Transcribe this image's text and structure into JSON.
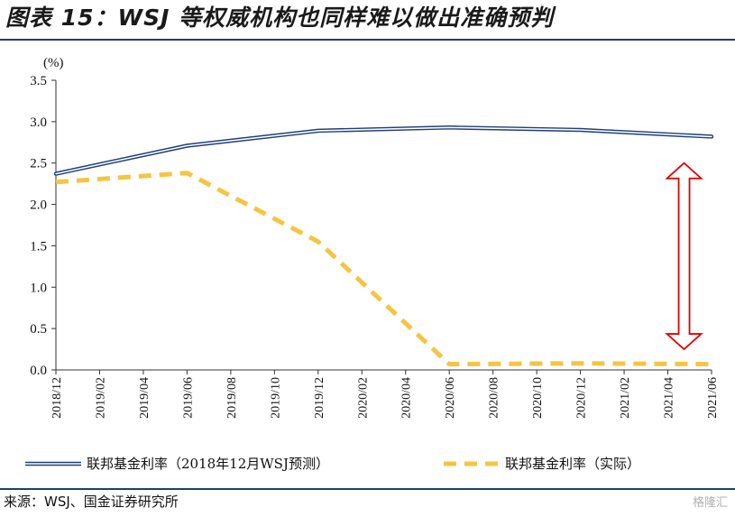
{
  "title": "图表 15：WSJ 等权威机构也同样难以做出准确预判",
  "source": "来源：WSJ、国金证券研究所",
  "watermark": "格隆汇",
  "chart_data": {
    "type": "line",
    "unit_label": "(%)",
    "x": [
      "2018/12",
      "2019/02",
      "2019/04",
      "2019/06",
      "2019/08",
      "2019/10",
      "2019/12",
      "2020/02",
      "2020/04",
      "2020/06",
      "2020/08",
      "2020/10",
      "2020/12",
      "2021/02",
      "2021/04",
      "2021/06"
    ],
    "ylim": [
      0,
      3.5
    ],
    "yticks": [
      "0.0",
      "0.5",
      "1.0",
      "1.5",
      "2.0",
      "2.5",
      "3.0",
      "3.5"
    ],
    "grid": false,
    "legend_position": "bottom",
    "series": [
      {
        "name": "联邦基金利率（2018年12月WSJ预测）",
        "style": "double-line",
        "color": "#1f3f7a",
        "points": [
          [
            "2018/12",
            2.37
          ],
          [
            "2019/06",
            2.71
          ],
          [
            "2019/12",
            2.89
          ],
          [
            "2020/06",
            2.93
          ],
          [
            "2020/12",
            2.9
          ],
          [
            "2021/06",
            2.82
          ]
        ]
      },
      {
        "name": "联邦基金利率（实际）",
        "style": "dashed",
        "color": "#f5c542",
        "points": [
          [
            "2018/12",
            2.27
          ],
          [
            "2019/06",
            2.38
          ],
          [
            "2019/12",
            1.55
          ],
          [
            "2020/06",
            0.07
          ],
          [
            "2020/12",
            0.08
          ],
          [
            "2021/06",
            0.07
          ]
        ]
      }
    ],
    "annotation": {
      "type": "double-arrow",
      "color": "#e00000",
      "from": 0.25,
      "to": 2.5,
      "at": "2021/04"
    }
  }
}
